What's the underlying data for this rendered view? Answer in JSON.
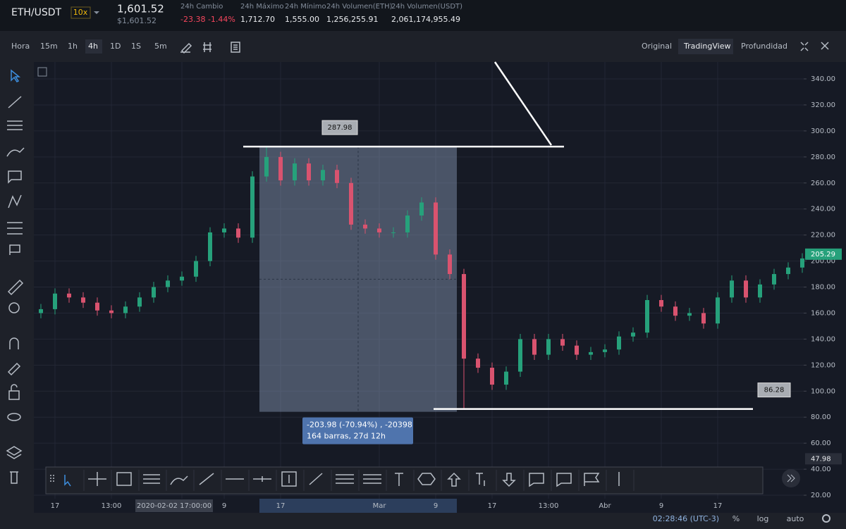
{
  "header": {
    "pair": "ETH/USDT",
    "leverage": "10x",
    "price": "1,601.52",
    "price_usd": "$1,601.52",
    "stats": [
      {
        "label": "24h Cambio",
        "value": "-23.38 -1.44%"
      },
      {
        "label": "24h Máximo",
        "value": "1,712.70"
      },
      {
        "label": "24h Mínimo",
        "value": "1,555.00"
      },
      {
        "label": "24h Volumen(ETH)",
        "value": "1,256,255.91"
      },
      {
        "label": "24h Volumen(USDT)",
        "value": "2,061,174,955.49"
      }
    ]
  },
  "toolbar": {
    "intervals": [
      "Hora",
      "15m",
      "1h",
      "4h",
      "1D",
      "1S",
      "5m"
    ],
    "views": [
      "Original",
      "TradingView",
      "Profundidad"
    ]
  },
  "footer": {
    "time": "02:28:46 (UTC-3)",
    "percent": "%",
    "log": "log",
    "auto": "auto"
  },
  "chart_data": {
    "type": "candlestick",
    "categories": [
      null,
      "17",
      null,
      null,
      null,
      "13:00",
      null,
      null,
      null,
      null,
      "2020-02-02 17:00:00",
      null,
      null,
      "9",
      null,
      null,
      null,
      "17",
      null,
      null,
      null,
      null,
      null,
      null,
      "Mar",
      null,
      null,
      null,
      "9",
      null,
      null,
      null,
      "17",
      null,
      null,
      null,
      "13:00",
      null,
      null,
      null,
      "Abr",
      null,
      null,
      null,
      "9",
      null,
      null,
      null,
      "17",
      null,
      null,
      null,
      null,
      null,
      null
    ],
    "open": [
      160,
      163,
      175,
      172,
      168,
      162,
      160,
      165,
      172,
      180,
      185,
      188,
      200,
      222,
      225,
      218,
      265,
      280,
      262,
      275,
      262,
      270,
      260,
      228,
      225,
      222,
      222,
      235,
      245,
      205,
      190,
      125,
      118,
      105,
      115,
      140,
      128,
      140,
      135,
      128,
      130,
      132,
      142,
      145,
      170,
      165,
      158,
      160,
      152,
      172,
      185,
      172,
      182,
      190,
      195
    ],
    "high": [
      167,
      179,
      179,
      176,
      172,
      166,
      169,
      176,
      184,
      189,
      192,
      204,
      226,
      229,
      229,
      269,
      288,
      284,
      279,
      279,
      274,
      274,
      264,
      232,
      229,
      226,
      239,
      249,
      249,
      209,
      194,
      129,
      122,
      119,
      144,
      144,
      144,
      144,
      139,
      134,
      136,
      146,
      149,
      174,
      174,
      169,
      164,
      164,
      176,
      189,
      189,
      186,
      194,
      199,
      206
    ],
    "low": [
      156,
      159,
      168,
      164,
      158,
      156,
      156,
      161,
      168,
      176,
      181,
      184,
      196,
      218,
      214,
      214,
      261,
      258,
      258,
      258,
      258,
      256,
      224,
      221,
      218,
      218,
      218,
      231,
      201,
      186,
      86,
      114,
      101,
      101,
      111,
      124,
      124,
      131,
      124,
      124,
      126,
      128,
      138,
      141,
      161,
      154,
      154,
      148,
      148,
      168,
      168,
      168,
      178,
      186,
      191
    ],
    "close": [
      163,
      175,
      172,
      168,
      162,
      160,
      165,
      172,
      180,
      185,
      188,
      200,
      222,
      225,
      218,
      265,
      280,
      262,
      275,
      262,
      270,
      260,
      228,
      225,
      222,
      222,
      235,
      245,
      205,
      190,
      125,
      118,
      105,
      115,
      140,
      128,
      140,
      135,
      128,
      130,
      132,
      142,
      145,
      170,
      165,
      158,
      160,
      152,
      172,
      185,
      172,
      182,
      190,
      195,
      202
    ],
    "up_color": "#26a17b",
    "down_color": "#d9536f",
    "ylim": [
      18.4,
      353
    ],
    "yticks": [
      {
        "value": 20,
        "label": "20.00"
      },
      {
        "value": 40,
        "label": "40.00"
      },
      {
        "value": 60,
        "label": "60.00"
      },
      {
        "value": 80,
        "label": "80.00"
      },
      {
        "value": 100,
        "label": "100.00"
      },
      {
        "value": 120,
        "label": "120.00"
      },
      {
        "value": 140,
        "label": "140.00"
      },
      {
        "value": 160,
        "label": "160.00"
      },
      {
        "value": 180,
        "label": "180.00"
      },
      {
        "value": 200,
        "label": "200.00"
      },
      {
        "value": 220,
        "label": "220.00"
      },
      {
        "value": 240,
        "label": "240.00"
      },
      {
        "value": 260,
        "label": "260.00"
      },
      {
        "value": 280,
        "label": "280.00"
      },
      {
        "value": 300,
        "label": "300.00"
      },
      {
        "value": 320,
        "label": "320.00"
      },
      {
        "value": 340,
        "label": "340.00"
      }
    ],
    "grid": true,
    "last_price": 205.29,
    "marker_price": 47.98,
    "range_high": 287.98,
    "range_low": 86.28,
    "measure": [
      "-203.98 (-70.94%) , -20398",
      "164 barras, 27d 12h"
    ]
  }
}
